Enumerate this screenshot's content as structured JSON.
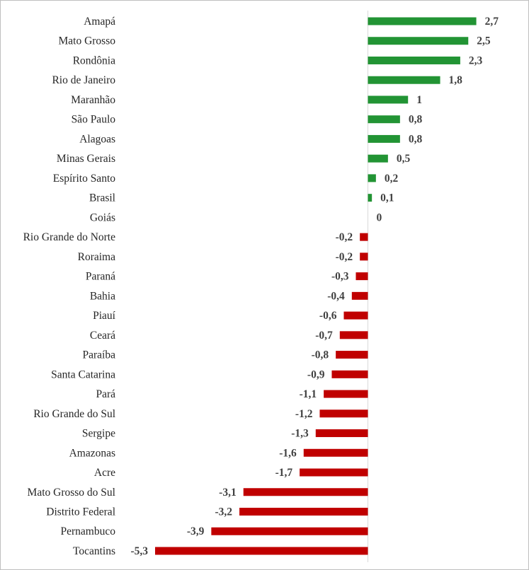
{
  "chart_data": {
    "type": "bar",
    "orientation": "horizontal",
    "title": "",
    "xlabel": "",
    "ylabel": "",
    "grid": false,
    "legend": "none",
    "xlim": [
      -5.3,
      2.7
    ],
    "categories": [
      "Amapá",
      "Mato Grosso",
      "Rondônia",
      "Rio de Janeiro",
      "Maranhão",
      "São Paulo",
      "Alagoas",
      "Minas Gerais",
      "Espírito Santo",
      "Brasil",
      "Goiás",
      "Rio Grande do Norte",
      "Roraima",
      "Paraná",
      "Bahia",
      "Piauí",
      "Ceará",
      "Paraíba",
      "Santa Catarina",
      "Pará",
      "Rio Grande do Sul",
      "Sergipe",
      "Amazonas",
      "Acre",
      "Mato Grosso do Sul",
      "Distrito Federal",
      "Pernambuco",
      "Tocantins"
    ],
    "values": [
      2.7,
      2.5,
      2.3,
      1.8,
      1,
      0.8,
      0.8,
      0.5,
      0.2,
      0.1,
      0,
      -0.2,
      -0.2,
      -0.3,
      -0.4,
      -0.6,
      -0.7,
      -0.8,
      -0.9,
      -1.1,
      -1.2,
      -1.3,
      -1.6,
      -1.7,
      -3.1,
      -3.2,
      -3.9,
      -5.3
    ],
    "value_labels": [
      "2,7",
      "2,5",
      "2,3",
      "1,8",
      "1",
      "0,8",
      "0,8",
      "0,5",
      "0,2",
      "0,1",
      "0",
      "-0,2",
      "-0,2",
      "-0,3",
      "-0,4",
      "-0,6",
      "-0,7",
      "-0,8",
      "-0,9",
      "-1,1",
      "-1,2",
      "-1,3",
      "-1,6",
      "-1,7",
      "-3,1",
      "-3,2",
      "-3,9",
      "-5,3"
    ],
    "colors": {
      "positive": "#229434",
      "negative": "#c00000",
      "axis": "#d9d9d9"
    }
  }
}
